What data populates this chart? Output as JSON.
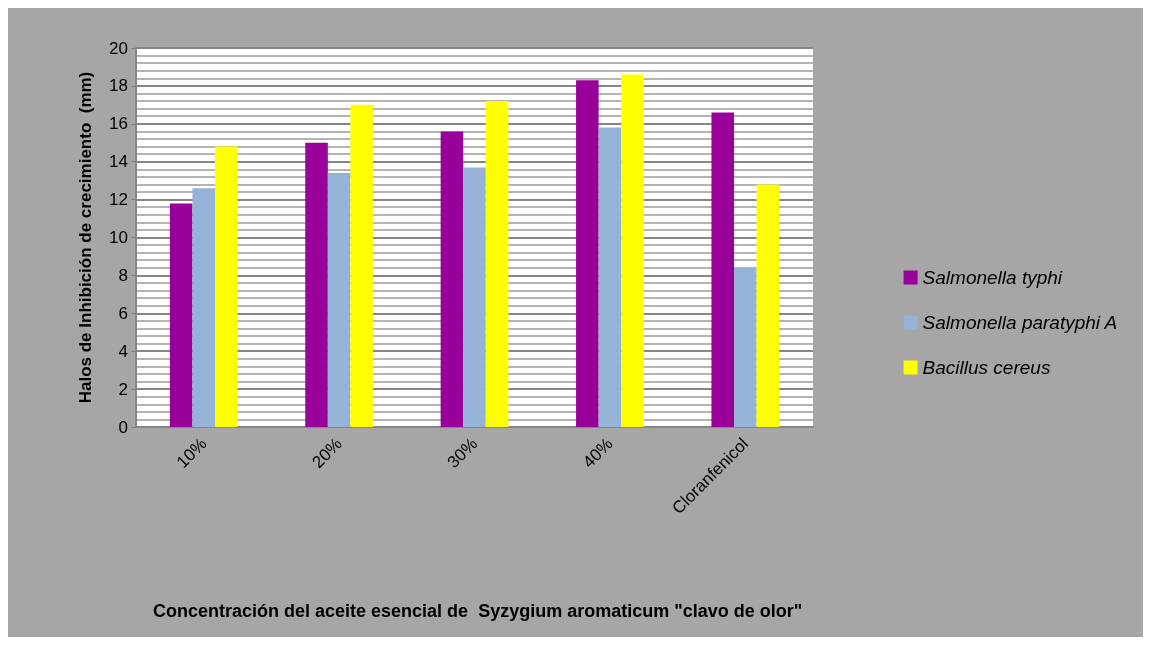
{
  "chart_data": {
    "type": "bar",
    "xlabel": "Concentración del aceite esencial de  Syzygium aromaticum \"clavo de olor\"",
    "ylabel": "Halos de Inhibición de crecimiento  (mm)",
    "categories": [
      "10%",
      "20%",
      "30%",
      "40%",
      "Cloranfenicol"
    ],
    "series": [
      {
        "name": "Salmonella typhi",
        "color": "#990099",
        "values": [
          11.8,
          15.0,
          15.6,
          18.3,
          16.6
        ]
      },
      {
        "name": "Salmonella paratyphi A",
        "color": "#95b3d7",
        "values": [
          12.6,
          13.4,
          13.7,
          15.8,
          8.4
        ]
      },
      {
        "name": "Bacillus cereus",
        "color": "#ffff00",
        "values": [
          14.8,
          17.0,
          17.2,
          18.6,
          12.8
        ]
      }
    ],
    "ylim": [
      0,
      20
    ],
    "yticks": [
      0,
      2,
      4,
      6,
      8,
      10,
      12,
      14,
      16,
      18,
      20
    ],
    "grid": "y",
    "legend": "right"
  }
}
